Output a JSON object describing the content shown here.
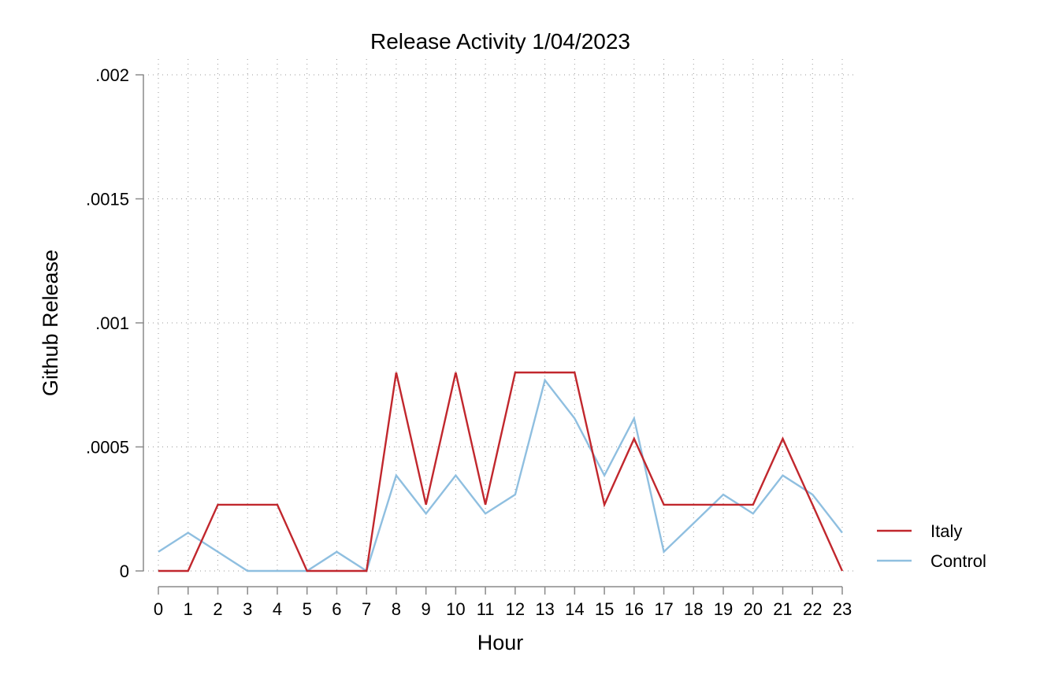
{
  "chart_data": {
    "type": "line",
    "title": "Release Activity 1/04/2023",
    "xlabel": "Hour",
    "ylabel": "Github Release",
    "x": [
      0,
      1,
      2,
      3,
      4,
      5,
      6,
      7,
      8,
      9,
      10,
      11,
      12,
      13,
      14,
      15,
      16,
      17,
      18,
      19,
      20,
      21,
      22,
      23
    ],
    "x_tick_labels": [
      "0",
      "1",
      "2",
      "3",
      "4",
      "5",
      "6",
      "7",
      "8",
      "9",
      "10",
      "11",
      "12",
      "13",
      "14",
      "15",
      "16",
      "17",
      "18",
      "19",
      "20",
      "21",
      "22",
      "23"
    ],
    "y_ticks": [
      0,
      0.0005,
      0.001,
      0.0015,
      0.002
    ],
    "y_tick_labels": [
      "0",
      ".0005",
      ".001",
      ".0015",
      ".002"
    ],
    "xlim": [
      0,
      23
    ],
    "ylim": [
      0,
      0.002
    ],
    "grid": true,
    "legend_position": "right",
    "series": [
      {
        "name": "Italy",
        "color": "#c1272d",
        "values": [
          0,
          0,
          0.000267,
          0.000267,
          0.000267,
          0,
          0,
          0,
          0.0008,
          0.000267,
          0.0008,
          0.000267,
          0.0008,
          0.0008,
          0.0008,
          0.000267,
          0.000533,
          0.000267,
          0.000267,
          0.000267,
          0.000267,
          0.000533,
          0.000267,
          0
        ]
      },
      {
        "name": "Control",
        "color": "#8fbfe0",
        "values": [
          7.7e-05,
          0.000154,
          7.7e-05,
          0,
          0,
          0,
          7.7e-05,
          0,
          0.000385,
          0.000231,
          0.000385,
          0.000231,
          0.000308,
          0.000769,
          0.000615,
          0.000385,
          0.000615,
          7.7e-05,
          0.000192,
          0.000308,
          0.000231,
          0.000385,
          0.000308,
          0.000154
        ]
      }
    ]
  }
}
